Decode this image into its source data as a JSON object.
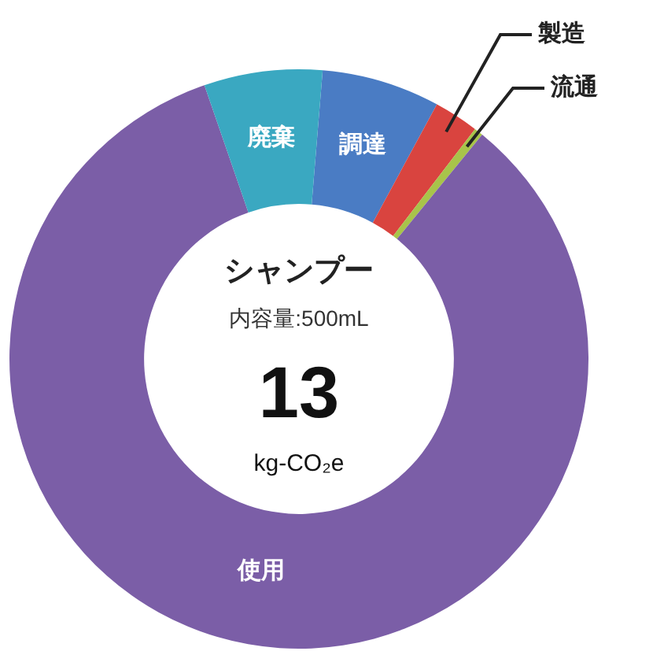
{
  "chart_data": {
    "type": "donut",
    "title": "シャンプー",
    "subtitle": "内容量:500mL",
    "annotations": [
      "13",
      "kg-CO₂e"
    ],
    "categories": [
      "調達",
      "製造",
      "流通",
      "使用",
      "廃棄"
    ],
    "values": [
      6.6,
      2.5,
      0.5,
      83.8,
      6.6
    ],
    "colors": [
      "#4a7cc4",
      "#d9443f",
      "#a8c44a",
      "#7b5ea7",
      "#3aa8c1"
    ]
  }
}
